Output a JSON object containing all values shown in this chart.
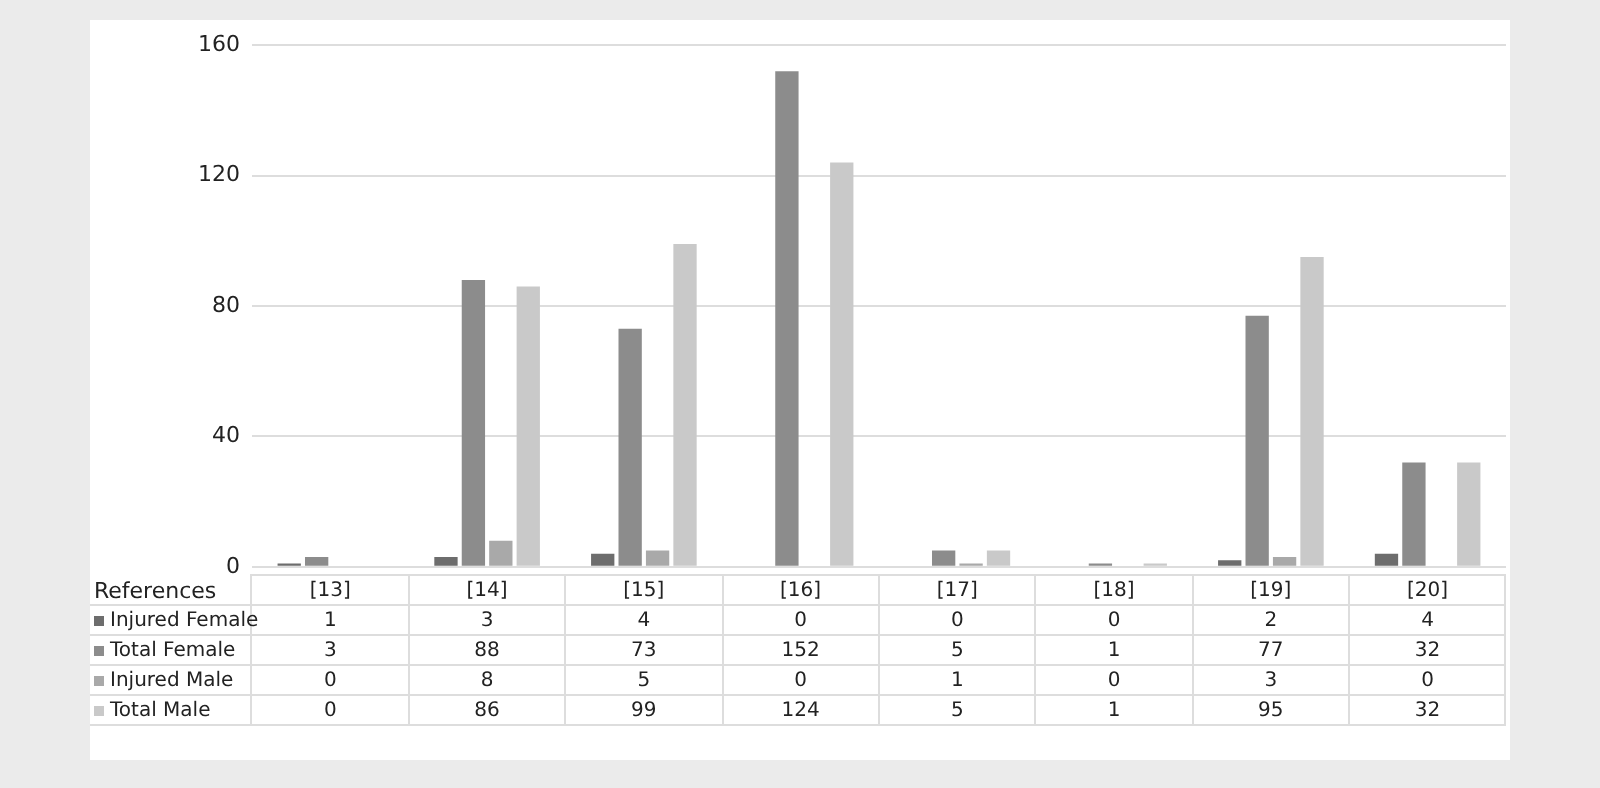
{
  "chart_data": {
    "type": "bar",
    "xlabel": "References",
    "categories": [
      "[13]",
      "[14]",
      "[15]",
      "[16]",
      "[17]",
      "[18]",
      "[19]",
      "[20]"
    ],
    "series": [
      {
        "name": "Injured Female",
        "color": "#6d6d6d",
        "values": [
          1,
          3,
          4,
          0,
          0,
          0,
          2,
          4
        ]
      },
      {
        "name": "Total Female",
        "color": "#8c8c8c",
        "values": [
          3,
          88,
          73,
          152,
          5,
          1,
          77,
          32
        ]
      },
      {
        "name": "Injured Male",
        "color": "#a9a9a9",
        "values": [
          0,
          8,
          5,
          0,
          1,
          0,
          3,
          0
        ]
      },
      {
        "name": "Total Male",
        "color": "#c9c9c9",
        "values": [
          0,
          86,
          99,
          124,
          5,
          1,
          95,
          32
        ]
      }
    ],
    "ylim": [
      0,
      160
    ],
    "yticks": [
      0,
      40,
      80,
      120,
      160
    ],
    "grid": "y",
    "legend": "bottom",
    "data_labels": true
  }
}
